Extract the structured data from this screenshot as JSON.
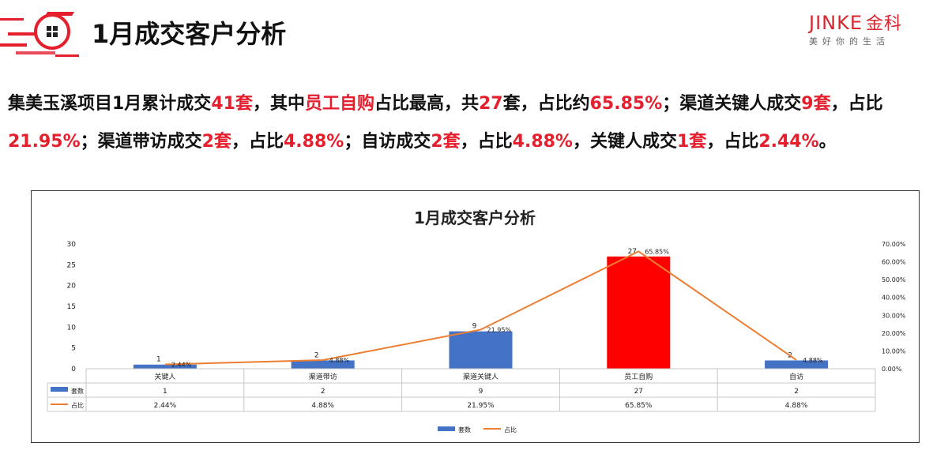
{
  "header": {
    "title": "1月成交客户分析",
    "logo": {
      "brand": "JINKE",
      "brand_cn": "金科",
      "slogan": "美好你的生活"
    }
  },
  "summary": {
    "parts": [
      {
        "t": "集美玉溪项目1月累计成交",
        "hl": false
      },
      {
        "t": "41套",
        "hl": true
      },
      {
        "t": "，其中",
        "hl": false
      },
      {
        "t": "员工自购",
        "hl": true
      },
      {
        "t": "占比最高，共",
        "hl": false
      },
      {
        "t": "27",
        "hl": true
      },
      {
        "t": "套，占比约",
        "hl": false
      },
      {
        "t": "65.85%",
        "hl": true
      },
      {
        "t": "；渠道关键人成交",
        "hl": false
      },
      {
        "t": "9套",
        "hl": true
      },
      {
        "t": "，占比",
        "hl": false
      },
      {
        "t": "21.95%",
        "hl": true
      },
      {
        "t": "；渠道带访成交",
        "hl": false
      },
      {
        "t": "2套",
        "hl": true
      },
      {
        "t": "，占比",
        "hl": false
      },
      {
        "t": "4.88%",
        "hl": true
      },
      {
        "t": "；自访成交",
        "hl": false
      },
      {
        "t": "2套",
        "hl": true
      },
      {
        "t": "，占比",
        "hl": false
      },
      {
        "t": "4.88%",
        "hl": true
      },
      {
        "t": "，关键人成交",
        "hl": false
      },
      {
        "t": "1套",
        "hl": true
      },
      {
        "t": "，占比",
        "hl": false
      },
      {
        "t": "2.44%",
        "hl": true
      },
      {
        "t": "。",
        "hl": false
      }
    ]
  },
  "chart_data": {
    "type": "bar",
    "title": "1月成交客户分析",
    "categories": [
      "关键人",
      "渠道带访",
      "渠道关键人",
      "员工自购",
      "自访"
    ],
    "series": [
      {
        "name": "套数",
        "type": "bar",
        "axis": "left",
        "values": [
          1,
          2,
          9,
          27,
          2
        ],
        "data_labels": [
          "1",
          "2",
          "9",
          "27",
          "2"
        ],
        "color": "#4472c4",
        "highlight_index": 3,
        "highlight_color": "#ff0000"
      },
      {
        "name": "占比",
        "type": "line",
        "axis": "right",
        "values": [
          2.44,
          4.88,
          21.95,
          65.85,
          4.88
        ],
        "data_labels": [
          "2.44%",
          "4.88%",
          "21.95%",
          "65.85%",
          "4.88%"
        ],
        "color": "#ed7d31"
      }
    ],
    "y_left": {
      "min": 0,
      "max": 30,
      "ticks": [
        "0",
        "5",
        "10",
        "15",
        "20",
        "25",
        "30"
      ]
    },
    "y_right": {
      "min": 0,
      "max": 70,
      "ticks": [
        "0.00%",
        "10.00%",
        "20.00%",
        "30.00%",
        "40.00%",
        "50.00%",
        "60.00%",
        "70.00%"
      ]
    },
    "data_table": true,
    "legend_position": "bottom",
    "grid": false
  }
}
